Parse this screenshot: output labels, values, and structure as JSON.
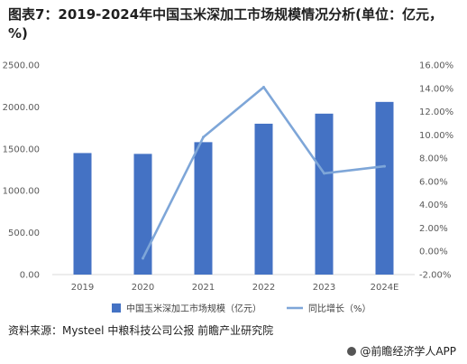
{
  "title": "图表7：2019-2024年中国玉米深加工市场规模情况分析(单位：亿元，%)",
  "source": "资料来源：Mysteel 中粮科技公司公报 前瞻产业研究院",
  "brand": "@前瞻经济学人APP",
  "chart_data": {
    "type": "bar",
    "categories": [
      "2019",
      "2020",
      "2021",
      "2022",
      "2023",
      "2024E"
    ],
    "series": [
      {
        "name": "中国玉米深加工市场规模（亿元）",
        "type": "bar",
        "axis": "left",
        "color": "#4472C4",
        "values": [
          1450,
          1440,
          1580,
          1800,
          1920,
          2060
        ]
      },
      {
        "name": "同比增长（%）",
        "type": "line",
        "axis": "right",
        "color": "#7EA6D8",
        "values": [
          null,
          -0.6,
          9.8,
          14.1,
          6.7,
          7.3
        ]
      }
    ],
    "y_left": {
      "min": 0,
      "max": 2500,
      "step": 500,
      "ticks": [
        "0.00",
        "500.00",
        "1000.00",
        "1500.00",
        "2000.00",
        "2500.00"
      ]
    },
    "y_right": {
      "min": -2,
      "max": 16,
      "step": 2,
      "ticks": [
        "-2.00%",
        "0.00%",
        "2.00%",
        "4.00%",
        "6.00%",
        "8.00%",
        "10.00%",
        "12.00%",
        "14.00%",
        "16.00%"
      ]
    },
    "legend_position": "bottom",
    "grid": false
  }
}
